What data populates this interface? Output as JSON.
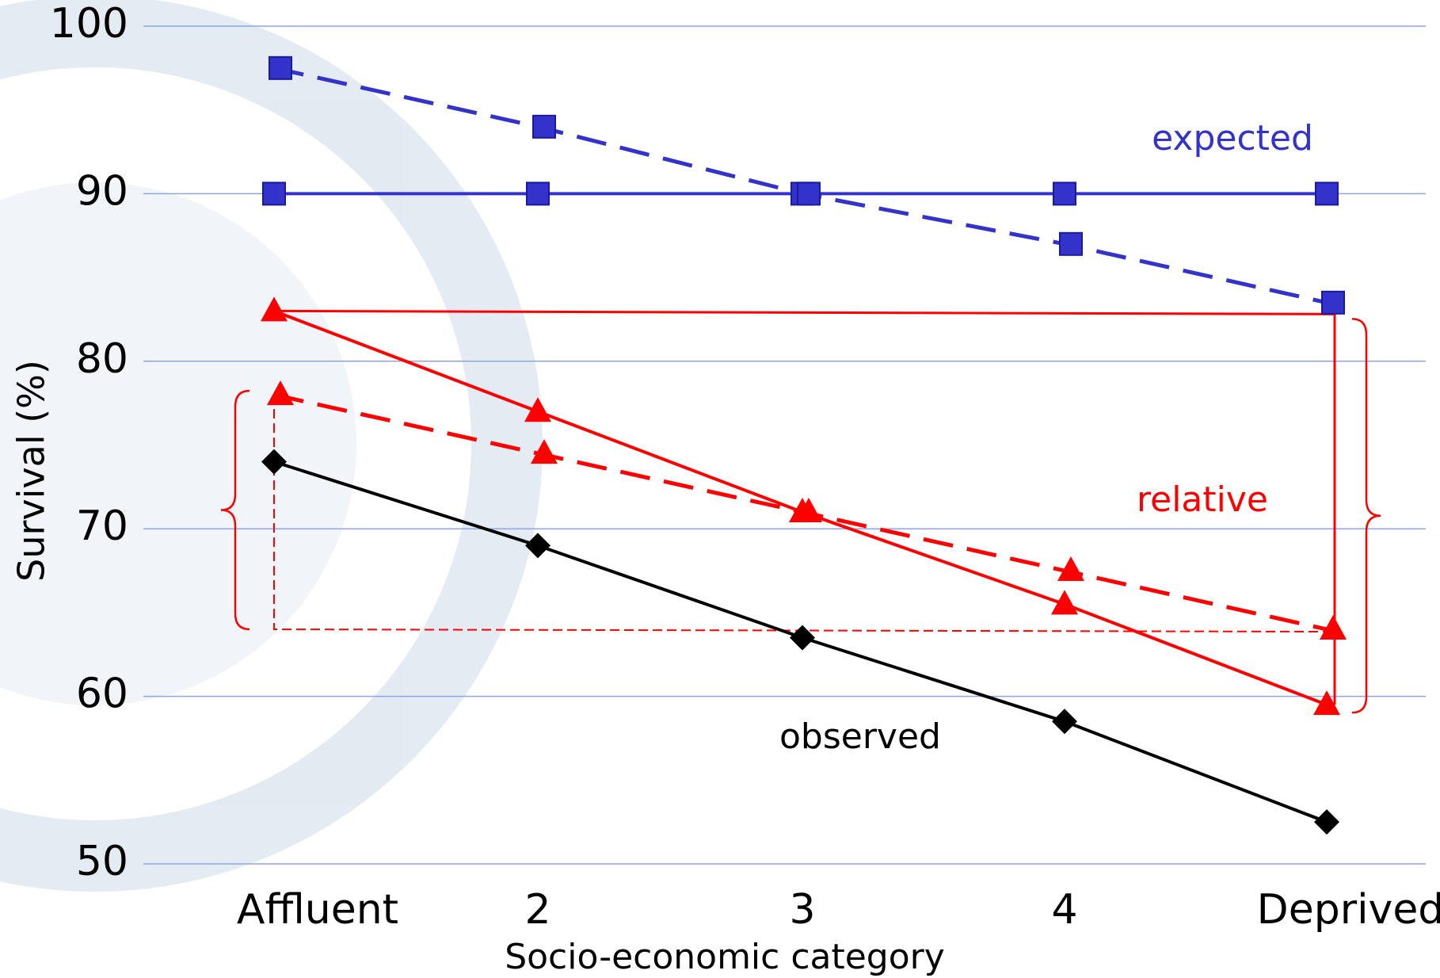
{
  "chart_data": {
    "type": "line",
    "x_label": "Socio-economic category",
    "y_label": "Survival (%)",
    "categories": [
      "Affluent",
      "2",
      "3",
      "4",
      "Deprived"
    ],
    "ylim": [
      50,
      100
    ],
    "yticks": [
      50,
      60,
      70,
      80,
      90,
      100
    ],
    "grid": true,
    "series": [
      {
        "color": "#3333cc",
        "dashed": false,
        "marker": "square",
        "values": [
          90,
          90,
          90,
          90,
          90
        ]
      },
      {
        "color": "#3333cc",
        "dashed": true,
        "marker": "square",
        "values": [
          97.5,
          94,
          90,
          87,
          83.5
        ]
      },
      {
        "color": "#ff0000",
        "dashed": false,
        "marker": "triangle",
        "values": [
          83,
          77,
          71,
          65.5,
          59.5
        ]
      },
      {
        "color": "#ff0000",
        "dashed": true,
        "marker": "triangle",
        "values": [
          78,
          74.5,
          71,
          67.5,
          64
        ]
      },
      {
        "color": "#000000",
        "dashed": false,
        "marker": "diamond",
        "values": [
          74,
          69,
          63.5,
          58.5,
          52.5
        ]
      }
    ],
    "annotations": [
      {
        "text": "expected",
        "color": "#3333cc"
      },
      {
        "text": "relative",
        "color": "#ff0000"
      },
      {
        "text": "observed",
        "color": "#000000"
      }
    ]
  }
}
